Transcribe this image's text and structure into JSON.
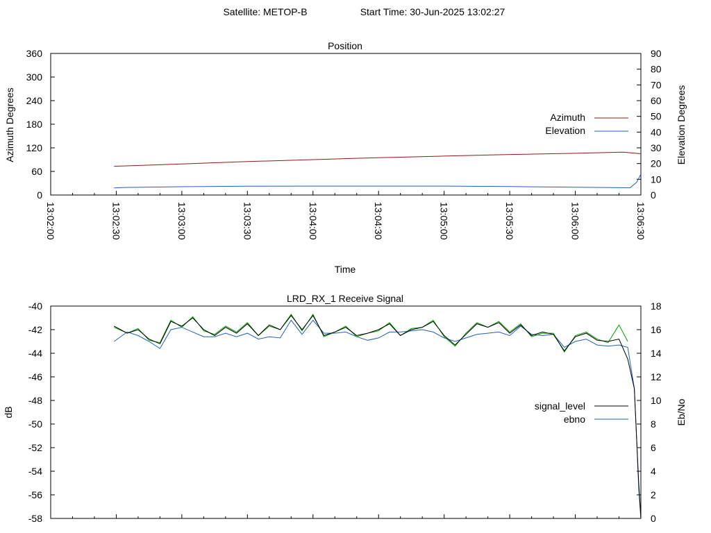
{
  "header": {
    "satellite_text": "Satellite: METOP-B",
    "start_text": "Start Time: 30-Jun-2025 13:02:27"
  },
  "colors": {
    "azimuth": "#8b1a1a",
    "elevation": "#1f5fbf",
    "signal_level": "#000000",
    "ebno": "#1f5fbf",
    "signal_green": "#00a000",
    "grid_axis": "#000000"
  },
  "chart_data": [
    {
      "type": "line",
      "title": "Position",
      "xlabel": "Time",
      "ylabel": "Azimuth Degrees",
      "y2label": "Elevation Degrees",
      "xlim": [
        "13:02:00",
        "13:06:30"
      ],
      "ylim": [
        0,
        360
      ],
      "y2lim": [
        0,
        90
      ],
      "x_ticks": [
        "13:02:00",
        "13:02:30",
        "13:03:00",
        "13:03:30",
        "13:04:00",
        "13:04:30",
        "13:05:00",
        "13:05:30",
        "13:06:00",
        "13:06:30"
      ],
      "y_ticks": [
        "0",
        "60",
        "120",
        "180",
        "240",
        "300",
        "360"
      ],
      "y2_ticks": [
        "0",
        "10",
        "20",
        "30",
        "40",
        "50",
        "60",
        "70",
        "80",
        "90"
      ],
      "legend_position": "right",
      "series": [
        {
          "name": "Azimuth",
          "axis": "y",
          "x_seconds_after_1302": [
            29,
            60,
            90,
            120,
            150,
            180,
            210,
            240,
            262,
            270
          ],
          "values": [
            73,
            79,
            85,
            90,
            95,
            99,
            103,
            106,
            109,
            105
          ]
        },
        {
          "name": "Elevation",
          "axis": "y2",
          "x_seconds_after_1302": [
            29,
            34,
            60,
            90,
            120,
            150,
            180,
            210,
            240,
            265,
            268,
            270
          ],
          "values": [
            4.5,
            4.8,
            5.3,
            5.6,
            5.7,
            5.7,
            5.7,
            5.4,
            5.0,
            4.6,
            8,
            13.2
          ]
        }
      ]
    },
    {
      "type": "line",
      "title": "LRD_RX_1 Receive Signal",
      "ylabel": "dB",
      "y2label": "Eb/No",
      "ylim": [
        -58,
        -40
      ],
      "y2lim": [
        0,
        18
      ],
      "y_ticks": [
        "-40",
        "-42",
        "-44",
        "-46",
        "-48",
        "-50",
        "-52",
        "-54",
        "-56",
        "-58"
      ],
      "y2_ticks": [
        "18",
        "16",
        "14",
        "12",
        "10",
        "8",
        "6",
        "4",
        "2",
        "0"
      ],
      "legend_position": "right",
      "series": [
        {
          "name": "signal_level",
          "axis": "y",
          "x_seconds_after_1302": [
            29,
            35,
            40,
            45,
            50,
            55,
            60,
            65,
            70,
            75,
            80,
            85,
            90,
            95,
            100,
            105,
            110,
            115,
            120,
            125,
            130,
            135,
            140,
            145,
            150,
            155,
            160,
            165,
            170,
            175,
            180,
            185,
            190,
            195,
            200,
            205,
            210,
            215,
            220,
            225,
            230,
            235,
            240,
            245,
            250,
            255,
            260,
            264,
            267,
            268,
            269,
            270
          ],
          "values": [
            -41.7,
            -42.3,
            -42.0,
            -42.8,
            -43.2,
            -41.3,
            -41.7,
            -41.0,
            -42.0,
            -42.5,
            -41.8,
            -42.3,
            -41.5,
            -42.5,
            -41.6,
            -42.0,
            -40.8,
            -42.0,
            -40.8,
            -42.5,
            -42.2,
            -41.8,
            -42.5,
            -42.3,
            -42.0,
            -41.5,
            -42.5,
            -42.0,
            -41.8,
            -41.3,
            -42.5,
            -43.3,
            -42.4,
            -41.5,
            -41.8,
            -41.4,
            -42.3,
            -41.6,
            -42.5,
            -42.2,
            -42.4,
            -43.8,
            -42.6,
            -42.3,
            -42.9,
            -43.0,
            -42.8,
            -44.5,
            -47.0,
            -51.0,
            -55.0,
            -58.0
          ]
        },
        {
          "name": "ebno",
          "axis": "y2",
          "x_seconds_after_1302": [
            29,
            35,
            40,
            45,
            50,
            55,
            60,
            65,
            70,
            75,
            80,
            85,
            90,
            95,
            100,
            105,
            110,
            115,
            120,
            125,
            130,
            135,
            140,
            145,
            150,
            155,
            160,
            165,
            170,
            175,
            180,
            185,
            190,
            195,
            200,
            205,
            210,
            215,
            220,
            225,
            230,
            235,
            240,
            245,
            250,
            255,
            260,
            264,
            267,
            268,
            269,
            270
          ],
          "values": [
            15.0,
            15.8,
            15.5,
            15.0,
            14.4,
            16.0,
            16.2,
            15.8,
            15.4,
            15.4,
            15.7,
            15.4,
            15.7,
            15.2,
            15.4,
            15.3,
            16.8,
            15.6,
            16.8,
            15.7,
            15.7,
            15.8,
            15.4,
            15.1,
            15.3,
            15.8,
            15.8,
            15.9,
            16.0,
            15.8,
            15.3,
            15.0,
            15.3,
            15.6,
            15.7,
            15.8,
            15.5,
            16.3,
            15.6,
            15.5,
            15.6,
            14.5,
            15.0,
            15.2,
            14.7,
            14.6,
            14.7,
            14.5,
            11.0,
            7.0,
            2.5,
            0.0
          ]
        },
        {
          "name": "",
          "axis": "y",
          "x_seconds_after_1302": [
            29,
            35,
            40,
            45,
            50,
            55,
            60,
            65,
            70,
            75,
            80,
            85,
            90,
            95,
            100,
            105,
            110,
            115,
            120,
            125,
            130,
            135,
            140,
            145,
            150,
            155,
            160,
            165,
            170,
            175,
            180,
            185,
            190,
            195,
            200,
            205,
            210,
            215,
            220,
            225,
            230,
            235,
            240,
            245,
            250,
            255,
            260,
            264
          ],
          "values": [
            -41.8,
            -42.3,
            -41.9,
            -42.9,
            -43.1,
            -41.2,
            -41.8,
            -40.9,
            -42.1,
            -42.4,
            -41.7,
            -42.2,
            -41.4,
            -42.5,
            -41.7,
            -42.0,
            -40.7,
            -42.1,
            -40.7,
            -42.6,
            -42.2,
            -41.7,
            -42.6,
            -42.3,
            -42.1,
            -41.4,
            -42.5,
            -41.9,
            -41.8,
            -41.2,
            -42.6,
            -43.4,
            -42.3,
            -41.4,
            -41.8,
            -41.3,
            -42.2,
            -41.5,
            -42.6,
            -42.3,
            -42.3,
            -43.9,
            -42.5,
            -42.2,
            -42.8,
            -43.1,
            -41.6,
            -43.0
          ]
        }
      ]
    }
  ]
}
